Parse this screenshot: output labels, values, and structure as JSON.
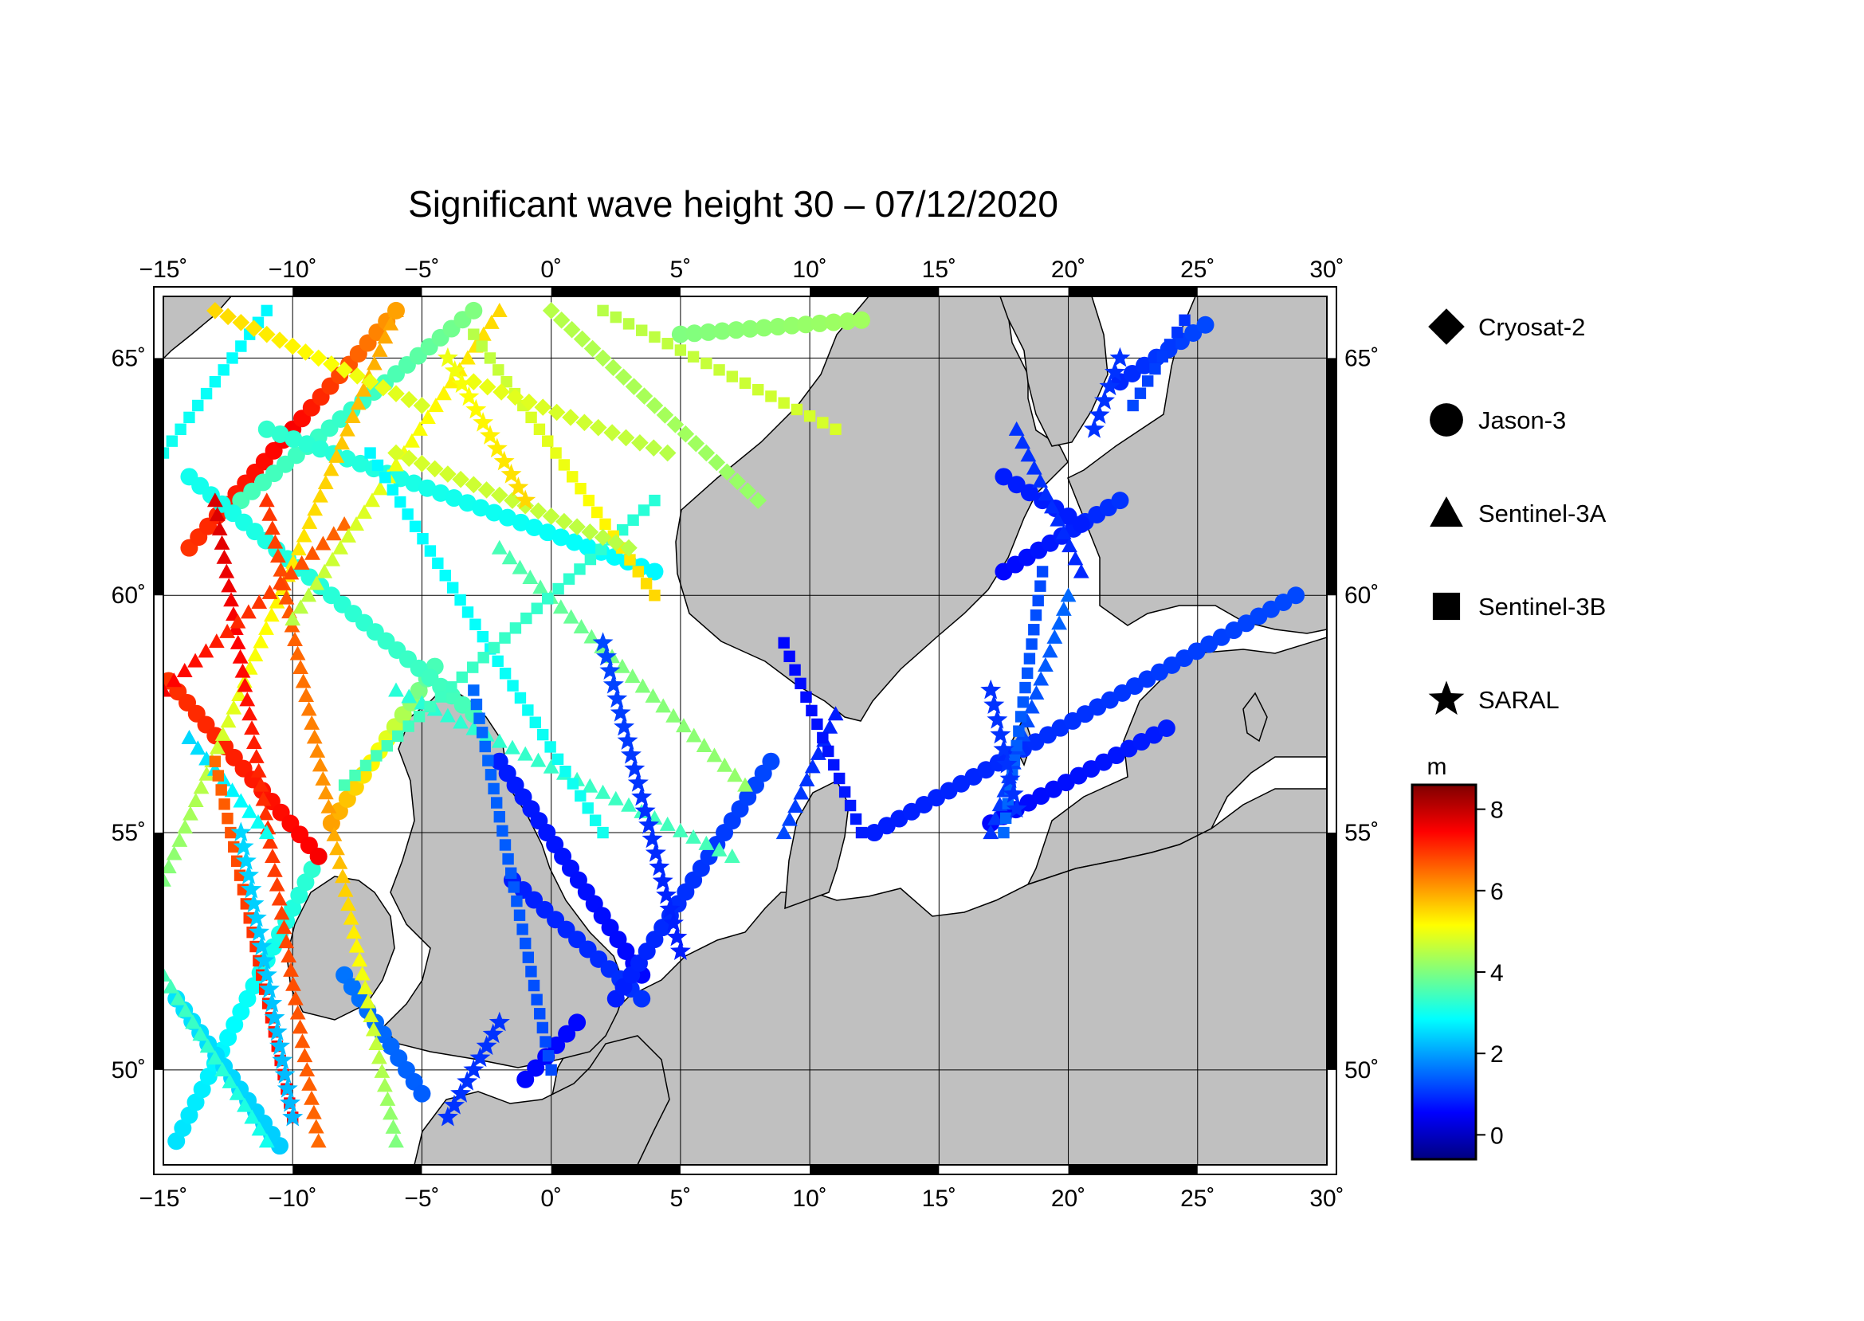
{
  "title": "Significant wave height 30 – 07/12/2020",
  "map": {
    "lon_range": [
      -15,
      30
    ],
    "lat_range": [
      48,
      66.3
    ],
    "lon_ticks": [
      -15,
      -10,
      -5,
      0,
      5,
      10,
      15,
      20,
      25,
      30
    ],
    "lat_ticks": [
      50,
      55,
      60,
      65
    ],
    "lon_tick_labels": [
      "−15˚",
      "−10˚",
      "−5˚",
      "0˚",
      "5˚",
      "10˚",
      "15˚",
      "20˚",
      "25˚",
      "30˚"
    ],
    "lat_tick_labels": [
      "50˚",
      "55˚",
      "60˚",
      "65˚"
    ],
    "grid": true,
    "land_color": "#c0c0c0",
    "sea_color": "#ffffff"
  },
  "legend": {
    "position": "right",
    "items": [
      {
        "label": "Cryosat-2",
        "symbol": "diamond"
      },
      {
        "label": "Jason-3",
        "symbol": "circle"
      },
      {
        "label": "Sentinel-3A",
        "symbol": "triangle"
      },
      {
        "label": "Sentinel-3B",
        "symbol": "square"
      },
      {
        "label": "SARAL",
        "symbol": "star"
      }
    ]
  },
  "colorbar": {
    "unit": "m",
    "range": [
      -0.6,
      8.6
    ],
    "ticks": [
      0,
      2,
      4,
      6,
      8
    ],
    "tick_labels": [
      "0",
      "2",
      "4",
      "6",
      "8"
    ],
    "colormap": "jet"
  },
  "chart_data": {
    "type": "scatter",
    "x_label": "",
    "y_label": "",
    "tracks": [
      {
        "satellite": "Jason-3",
        "symbol": "circle",
        "start": [
          -14.5,
          48.5
        ],
        "end": [
          -9,
          54.5
        ],
        "h": [
          2.6,
          2.8,
          3.0,
          3.3
        ]
      },
      {
        "satellite": "Jason-3",
        "symbol": "circle",
        "start": [
          -10.5,
          48.4
        ],
        "end": [
          -14.5,
          51.5
        ],
        "h": [
          2.4,
          2.6
        ]
      },
      {
        "satellite": "Jason-3",
        "symbol": "circle",
        "start": [
          -14.8,
          58.2
        ],
        "end": [
          -9,
          54.5
        ],
        "h": [
          7.0,
          7.2,
          7.5
        ]
      },
      {
        "satellite": "Jason-3",
        "symbol": "circle",
        "start": [
          -8.5,
          55.2
        ],
        "end": [
          -4.5,
          58.5
        ],
        "h": [
          6.0,
          5.0,
          3.5
        ]
      },
      {
        "satellite": "Jason-3",
        "symbol": "circle",
        "start": [
          -14,
          61
        ],
        "end": [
          -6,
          66
        ],
        "h": [
          7.0,
          7.5,
          6.0
        ]
      },
      {
        "satellite": "Jason-3",
        "symbol": "circle",
        "start": [
          -12,
          62
        ],
        "end": [
          -3,
          66
        ],
        "h": [
          3.5,
          3.3,
          4.0
        ]
      },
      {
        "satellite": "Jason-3",
        "symbol": "circle",
        "start": [
          -11,
          63.5
        ],
        "end": [
          4,
          60.5
        ],
        "h": [
          3.3,
          3.0,
          2.8
        ]
      },
      {
        "satellite": "Jason-3",
        "symbol": "circle",
        "start": [
          -14,
          62.5
        ],
        "end": [
          -3,
          57.5
        ],
        "h": [
          3.0,
          3.2,
          3.5
        ]
      },
      {
        "satellite": "Jason-3",
        "symbol": "circle",
        "start": [
          -8,
          52
        ],
        "end": [
          -5,
          49.5
        ],
        "h": [
          1.6,
          1.4
        ]
      },
      {
        "satellite": "Jason-3",
        "symbol": "circle",
        "start": [
          -2,
          56.5
        ],
        "end": [
          3.5,
          52
        ],
        "h": [
          0.8,
          0.6
        ]
      },
      {
        "satellite": "Jason-3",
        "symbol": "circle",
        "start": [
          -1.5,
          54
        ],
        "end": [
          3.5,
          51.5
        ],
        "h": [
          0.8,
          1.0
        ]
      },
      {
        "satellite": "Jason-3",
        "symbol": "circle",
        "start": [
          2.5,
          51.5
        ],
        "end": [
          8.5,
          56.5
        ],
        "h": [
          0.8,
          1.2
        ]
      },
      {
        "satellite": "Jason-3",
        "symbol": "circle",
        "start": [
          -1,
          49.8
        ],
        "end": [
          1,
          51
        ],
        "h": [
          0.6
        ]
      },
      {
        "satellite": "Jason-3",
        "symbol": "circle",
        "start": [
          12.5,
          55
        ],
        "end": [
          28.8,
          60
        ],
        "h": [
          0.8,
          1.0,
          1.2
        ]
      },
      {
        "satellite": "Jason-3",
        "symbol": "circle",
        "start": [
          17,
          55.2
        ],
        "end": [
          23.8,
          57.2
        ],
        "h": [
          0.6,
          0.8
        ]
      },
      {
        "satellite": "Jason-3",
        "symbol": "circle",
        "start": [
          17.5,
          60.5
        ],
        "end": [
          22,
          62
        ],
        "h": [
          0.6,
          1.0
        ]
      },
      {
        "satellite": "Jason-3",
        "symbol": "circle",
        "start": [
          17.5,
          62.5
        ],
        "end": [
          20.5,
          61.5
        ],
        "h": [
          0.8
        ]
      },
      {
        "satellite": "Jason-3",
        "symbol": "circle",
        "start": [
          22,
          64.5
        ],
        "end": [
          25.3,
          65.7
        ],
        "h": [
          0.9,
          1.2
        ]
      },
      {
        "satellite": "Jason-3",
        "symbol": "circle",
        "start": [
          5,
          65.5
        ],
        "end": [
          12,
          65.8
        ],
        "h": [
          4.0,
          4.3
        ]
      },
      {
        "satellite": "Sentinel-3A",
        "symbol": "triangle",
        "start": [
          -15,
          54
        ],
        "end": [
          -6,
          66
        ],
        "h": [
          4.0,
          5.0,
          5.5,
          6.0
        ]
      },
      {
        "satellite": "Sentinel-3A",
        "symbol": "triangle",
        "start": [
          -11,
          48.5
        ],
        "end": [
          -15,
          52
        ],
        "h": [
          3.0,
          3.5
        ]
      },
      {
        "satellite": "Sentinel-3A",
        "symbol": "triangle",
        "start": [
          -9,
          48.5
        ],
        "end": [
          -13,
          62
        ],
        "h": [
          6.5,
          7.0,
          7.8
        ]
      },
      {
        "satellite": "Sentinel-3A",
        "symbol": "triangle",
        "start": [
          -6,
          48.5
        ],
        "end": [
          -11,
          62
        ],
        "h": [
          4.0,
          6.0,
          7.0
        ]
      },
      {
        "satellite": "Sentinel-3A",
        "symbol": "triangle",
        "start": [
          -8,
          61.5
        ],
        "end": [
          -15,
          58
        ],
        "h": [
          6.5,
          7.5
        ]
      },
      {
        "satellite": "Sentinel-3A",
        "symbol": "triangle",
        "start": [
          -14,
          57
        ],
        "end": [
          -11,
          55
        ],
        "h": [
          2.5,
          3.0
        ]
      },
      {
        "satellite": "Sentinel-3A",
        "symbol": "triangle",
        "start": [
          -2,
          61
        ],
        "end": [
          7.5,
          56
        ],
        "h": [
          3.5,
          4.0,
          4.2
        ]
      },
      {
        "satellite": "Sentinel-3A",
        "symbol": "triangle",
        "start": [
          -6,
          58
        ],
        "end": [
          7,
          54.5
        ],
        "h": [
          3.2,
          3.5
        ]
      },
      {
        "satellite": "Sentinel-3A",
        "symbol": "triangle",
        "start": [
          -10,
          59.5
        ],
        "end": [
          -2,
          66
        ],
        "h": [
          4.5,
          5.5
        ]
      },
      {
        "satellite": "Sentinel-3A",
        "symbol": "triangle",
        "start": [
          18,
          63.5
        ],
        "end": [
          20.5,
          60.5
        ],
        "h": [
          1.0,
          0.9
        ]
      },
      {
        "satellite": "Sentinel-3A",
        "symbol": "triangle",
        "start": [
          17,
          55
        ],
        "end": [
          20,
          60
        ],
        "h": [
          1.0,
          1.5
        ]
      },
      {
        "satellite": "Sentinel-3A",
        "symbol": "triangle",
        "start": [
          11,
          57.5
        ],
        "end": [
          9,
          55
        ],
        "h": [
          0.8,
          1.2
        ]
      },
      {
        "satellite": "Sentinel-3B",
        "symbol": "square",
        "start": [
          -3,
          58
        ],
        "end": [
          0,
          50
        ],
        "h": [
          1.5,
          1.2
        ]
      },
      {
        "satellite": "Sentinel-3B",
        "symbol": "square",
        "start": [
          -7,
          63
        ],
        "end": [
          2,
          55
        ],
        "h": [
          2.8,
          3.0
        ]
      },
      {
        "satellite": "Sentinel-3B",
        "symbol": "square",
        "start": [
          4,
          62
        ],
        "end": [
          -8,
          56
        ],
        "h": [
          3.2,
          3.5
        ]
      },
      {
        "satellite": "Sentinel-3B",
        "symbol": "square",
        "start": [
          -13,
          56.5
        ],
        "end": [
          -10,
          49
        ],
        "h": [
          6.5,
          7.5
        ]
      },
      {
        "satellite": "Sentinel-3B",
        "symbol": "square",
        "start": [
          -15,
          63
        ],
        "end": [
          -11,
          66
        ],
        "h": [
          3.0,
          2.8
        ]
      },
      {
        "satellite": "Sentinel-3B",
        "symbol": "square",
        "start": [
          -3,
          65.5
        ],
        "end": [
          4,
          60
        ],
        "h": [
          4.5,
          5.5
        ]
      },
      {
        "satellite": "Sentinel-3B",
        "symbol": "square",
        "start": [
          9,
          59
        ],
        "end": [
          12,
          55
        ],
        "h": [
          0.6,
          0.8
        ]
      },
      {
        "satellite": "Sentinel-3B",
        "symbol": "square",
        "start": [
          19,
          60.5
        ],
        "end": [
          17.5,
          55
        ],
        "h": [
          1.2,
          1.5
        ]
      },
      {
        "satellite": "Sentinel-3B",
        "symbol": "square",
        "start": [
          24.5,
          65.8
        ],
        "end": [
          22.5,
          64
        ],
        "h": [
          1.0,
          1.2
        ]
      },
      {
        "satellite": "Sentinel-3B",
        "symbol": "square",
        "start": [
          2,
          66
        ],
        "end": [
          11,
          63.5
        ],
        "h": [
          4.5,
          4.8
        ]
      },
      {
        "satellite": "Cryosat-2",
        "symbol": "diamond",
        "start": [
          -3,
          64.5
        ],
        "end": [
          4.5,
          63
        ],
        "h": [
          5.0,
          4.5
        ]
      },
      {
        "satellite": "Cryosat-2",
        "symbol": "diamond",
        "start": [
          0,
          66
        ],
        "end": [
          8,
          62
        ],
        "h": [
          4.5,
          4.2
        ]
      },
      {
        "satellite": "Cryosat-2",
        "symbol": "diamond",
        "start": [
          -6,
          63
        ],
        "end": [
          3,
          61
        ],
        "h": [
          4.8,
          4.5
        ]
      },
      {
        "satellite": "Cryosat-2",
        "symbol": "diamond",
        "start": [
          -13,
          66
        ],
        "end": [
          -5,
          64
        ],
        "h": [
          5.5,
          4.8
        ]
      },
      {
        "satellite": "SARAL",
        "symbol": "star",
        "start": [
          -12,
          55
        ],
        "end": [
          -10,
          49
        ],
        "h": [
          2.5,
          2.2
        ]
      },
      {
        "satellite": "SARAL",
        "symbol": "star",
        "start": [
          2,
          59
        ],
        "end": [
          5,
          52.5
        ],
        "h": [
          1.2,
          0.8
        ]
      },
      {
        "satellite": "SARAL",
        "symbol": "star",
        "start": [
          -2,
          51
        ],
        "end": [
          -4,
          49
        ],
        "h": [
          1.0
        ]
      },
      {
        "satellite": "SARAL",
        "symbol": "star",
        "start": [
          -4,
          65
        ],
        "end": [
          -1,
          62
        ],
        "h": [
          5.0,
          5.5
        ]
      },
      {
        "satellite": "SARAL",
        "symbol": "star",
        "start": [
          22,
          65
        ],
        "end": [
          21,
          63.5
        ],
        "h": [
          1.0
        ]
      },
      {
        "satellite": "SARAL",
        "symbol": "star",
        "start": [
          17,
          58
        ],
        "end": [
          18,
          55.5
        ],
        "h": [
          1.0
        ]
      }
    ]
  }
}
